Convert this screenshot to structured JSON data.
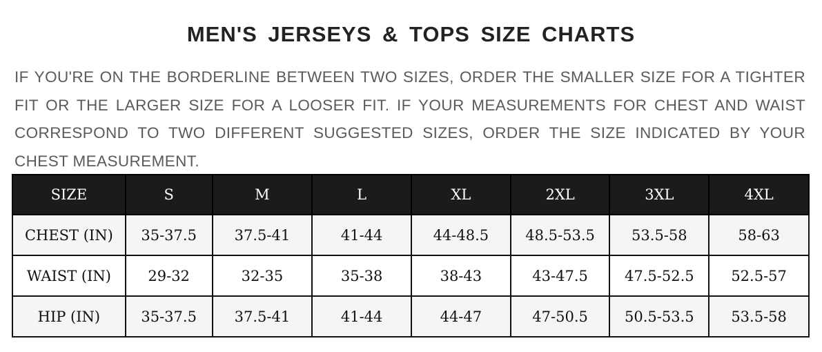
{
  "title": "MEN'S JERSEYS & TOPS SIZE CHARTS",
  "note": "IF YOU'RE ON THE BORDERLINE BETWEEN TWO SIZES, ORDER THE SMALLER SIZE FOR A TIGHTER FIT OR THE LARGER SIZE FOR A LOOSER FIT. IF YOUR MEASUREMENTS FOR CHEST AND WAIST CORRESPOND TO TWO DIFFERENT SUGGESTED SIZES, ORDER THE SIZE INDICATED BY YOUR CHEST MEASUREMENT.",
  "table": {
    "headers": [
      "SIZE",
      "S",
      "M",
      "L",
      "XL",
      "2XL",
      "3XL",
      "4XL"
    ],
    "rows": [
      [
        "CHEST (IN)",
        "35-37.5",
        "37.5-41",
        "41-44",
        "44-48.5",
        "48.5-53.5",
        "53.5-58",
        "58-63"
      ],
      [
        "WAIST (IN)",
        "29-32",
        "32-35",
        "35-38",
        "38-43",
        "43-47.5",
        "47.5-52.5",
        "52.5-57"
      ],
      [
        "HIP (IN)",
        "35-37.5",
        "37.5-41",
        "41-44",
        "44-47",
        "47-50.5",
        "50.5-53.5",
        "53.5-58"
      ]
    ]
  },
  "colors": {
    "header_bg": "#1b1b1b",
    "row_alt_bg": "#f4f5f7",
    "note_text": "#5a5a5a"
  }
}
